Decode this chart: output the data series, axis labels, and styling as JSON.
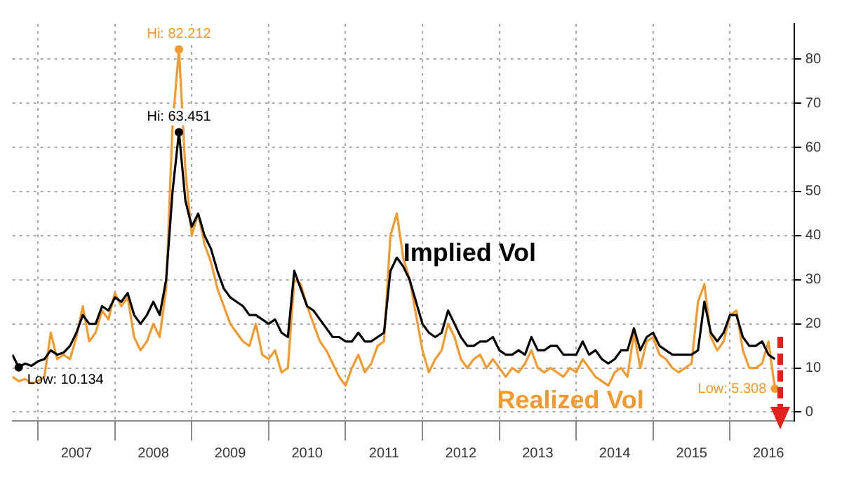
{
  "chart_data": {
    "type": "line",
    "x": [
      "2006-09",
      "2006-10",
      "2006-11",
      "2006-12",
      "2007-01",
      "2007-02",
      "2007-03",
      "2007-04",
      "2007-05",
      "2007-06",
      "2007-07",
      "2007-08",
      "2007-09",
      "2007-10",
      "2007-11",
      "2007-12",
      "2008-01",
      "2008-02",
      "2008-03",
      "2008-04",
      "2008-05",
      "2008-06",
      "2008-07",
      "2008-08",
      "2008-09",
      "2008-10",
      "2008-11",
      "2008-12",
      "2009-01",
      "2009-02",
      "2009-03",
      "2009-04",
      "2009-05",
      "2009-06",
      "2009-07",
      "2009-08",
      "2009-09",
      "2009-10",
      "2009-11",
      "2009-12",
      "2010-01",
      "2010-02",
      "2010-03",
      "2010-04",
      "2010-05",
      "2010-06",
      "2010-07",
      "2010-08",
      "2010-09",
      "2010-10",
      "2010-11",
      "2010-12",
      "2011-01",
      "2011-02",
      "2011-03",
      "2011-04",
      "2011-05",
      "2011-06",
      "2011-07",
      "2011-08",
      "2011-09",
      "2011-10",
      "2011-11",
      "2011-12",
      "2012-01",
      "2012-02",
      "2012-03",
      "2012-04",
      "2012-05",
      "2012-06",
      "2012-07",
      "2012-08",
      "2012-09",
      "2012-10",
      "2012-11",
      "2012-12",
      "2013-01",
      "2013-02",
      "2013-03",
      "2013-04",
      "2013-05",
      "2013-06",
      "2013-07",
      "2013-08",
      "2013-09",
      "2013-10",
      "2013-11",
      "2013-12",
      "2014-01",
      "2014-02",
      "2014-03",
      "2014-04",
      "2014-05",
      "2014-06",
      "2014-07",
      "2014-08",
      "2014-09",
      "2014-10",
      "2014-11",
      "2014-12",
      "2015-01",
      "2015-02",
      "2015-03",
      "2015-04",
      "2015-05",
      "2015-06",
      "2015-07",
      "2015-08",
      "2015-09",
      "2015-10",
      "2015-11",
      "2015-12",
      "2016-01",
      "2016-02",
      "2016-03",
      "2016-04",
      "2016-05",
      "2016-06",
      "2016-07",
      "2016-08"
    ],
    "series": [
      {
        "name": "Implied Vol",
        "color": "#000000",
        "values": [
          13,
          10.134,
          11,
          10.5,
          11.5,
          12,
          14,
          13,
          13.5,
          15,
          18,
          22,
          20,
          20,
          24,
          23,
          26,
          25,
          27,
          22,
          20,
          22,
          25,
          22,
          30,
          50,
          63.451,
          48,
          42,
          45,
          40,
          37,
          32,
          28,
          26,
          25,
          24,
          22,
          22,
          21,
          20,
          21,
          18,
          17,
          32,
          28,
          24,
          23,
          21,
          19,
          17,
          17,
          16,
          16,
          18,
          16,
          16,
          17,
          18,
          32,
          35,
          33,
          30,
          25,
          20,
          18,
          17,
          18,
          23,
          20,
          17,
          15,
          15,
          16,
          16,
          17,
          14,
          13,
          13,
          14,
          13,
          17,
          14,
          14,
          15,
          15,
          13,
          13,
          13,
          16,
          13,
          14,
          12,
          11,
          12,
          14,
          14,
          19,
          14,
          17,
          18,
          15,
          14,
          13,
          13,
          13,
          13,
          14,
          25,
          18,
          16,
          18,
          22,
          22,
          17,
          15,
          15,
          16,
          13,
          12
        ]
      },
      {
        "name": "Realized Vol",
        "color": "#f39a2e",
        "values": [
          8,
          7,
          7.5,
          6.5,
          7,
          8,
          18,
          12,
          13,
          12,
          17,
          24,
          16,
          18,
          23,
          21,
          27,
          24,
          26,
          17,
          14,
          16,
          20,
          17,
          28,
          65,
          82.212,
          55,
          40,
          45,
          38,
          34,
          28,
          24,
          20,
          18,
          16,
          15,
          20,
          13,
          12,
          14,
          9,
          10,
          30,
          29,
          24,
          20,
          16,
          14,
          11,
          8,
          6,
          10,
          13,
          9,
          11,
          15,
          16,
          40,
          45,
          35,
          30,
          22,
          14,
          9,
          12,
          14,
          20,
          17,
          12,
          10,
          12,
          13,
          10,
          12,
          10,
          8,
          10,
          9,
          11,
          14,
          10,
          9,
          10,
          9,
          8,
          10,
          9,
          12,
          10,
          8,
          7,
          6,
          9,
          10,
          8,
          18,
          10,
          16,
          17,
          13,
          12,
          10,
          9,
          10,
          11,
          25,
          29,
          17,
          14,
          16,
          22,
          23,
          14,
          10,
          10,
          11,
          16,
          5.308
        ]
      }
    ],
    "xlim": [
      "2006-09",
      "2016-11"
    ],
    "xticks": [
      {
        "value": "2007",
        "label": null
      },
      {
        "value": "2007-07",
        "label": "2007"
      },
      {
        "value": "2008",
        "label": null
      },
      {
        "value": "2008-07",
        "label": "2008"
      },
      {
        "value": "2009",
        "label": null
      },
      {
        "value": "2009-07",
        "label": "2009"
      },
      {
        "value": "2010",
        "label": null
      },
      {
        "value": "2010-07",
        "label": "2010"
      },
      {
        "value": "2011",
        "label": null
      },
      {
        "value": "2011-07",
        "label": "2011"
      },
      {
        "value": "2012",
        "label": null
      },
      {
        "value": "2012-07",
        "label": "2012"
      },
      {
        "value": "2013",
        "label": null
      },
      {
        "value": "2013-07",
        "label": "2013"
      },
      {
        "value": "2014",
        "label": null
      },
      {
        "value": "2014-07",
        "label": "2014"
      },
      {
        "value": "2015",
        "label": null
      },
      {
        "value": "2015-07",
        "label": "2015"
      },
      {
        "value": "2016",
        "label": null
      },
      {
        "value": "2016-07",
        "label": "2016"
      }
    ],
    "ylim": [
      -2,
      88
    ],
    "yticks": [
      0,
      10,
      20,
      30,
      40,
      50,
      60,
      70,
      80
    ],
    "annotations": [
      {
        "text": "Hi: 82.212",
        "x": "2008-11",
        "y": 82.212
      },
      {
        "text": "Hi: 63.451",
        "x": "2008-11",
        "y": 63.451
      },
      {
        "text": "Low: 10.134",
        "x": "2006-10",
        "y": 10.134
      },
      {
        "text": "Low: 5.308",
        "x": "2016-08",
        "y": 5.308
      }
    ],
    "grid": true,
    "legend": false,
    "marker": "none",
    "line_style": "solid"
  }
}
